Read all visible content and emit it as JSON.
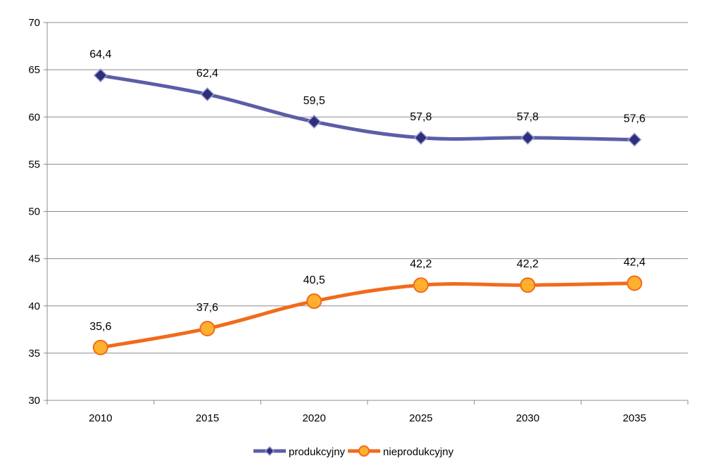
{
  "chart_data": {
    "type": "line",
    "title": "",
    "xlabel": "",
    "ylabel": "",
    "categories": [
      "2010",
      "2015",
      "2020",
      "2025",
      "2030",
      "2035"
    ],
    "ylim": [
      30,
      70
    ],
    "yticks": [
      "30",
      "35",
      "40",
      "45",
      "50",
      "55",
      "60",
      "65",
      "70"
    ],
    "grid": "horizontal",
    "legend_position": "bottom",
    "series": [
      {
        "name": "produkcyjny",
        "values": [
          64.4,
          62.4,
          59.5,
          57.8,
          57.8,
          57.6
        ],
        "labels": [
          "64,4",
          "62,4",
          "59,5",
          "57,8",
          "57,8",
          "57,6"
        ],
        "color": "#5b5ea6",
        "marker": "diamond",
        "marker_color": "#2e2f7a"
      },
      {
        "name": "nieprodukcyjny",
        "values": [
          35.6,
          37.6,
          40.5,
          42.2,
          42.2,
          42.4
        ],
        "labels": [
          "35,6",
          "37,6",
          "40,5",
          "42,2",
          "42,2",
          "42,4"
        ],
        "color": "#f26a1b",
        "marker": "circle",
        "marker_color": "#ffb02e"
      }
    ]
  }
}
